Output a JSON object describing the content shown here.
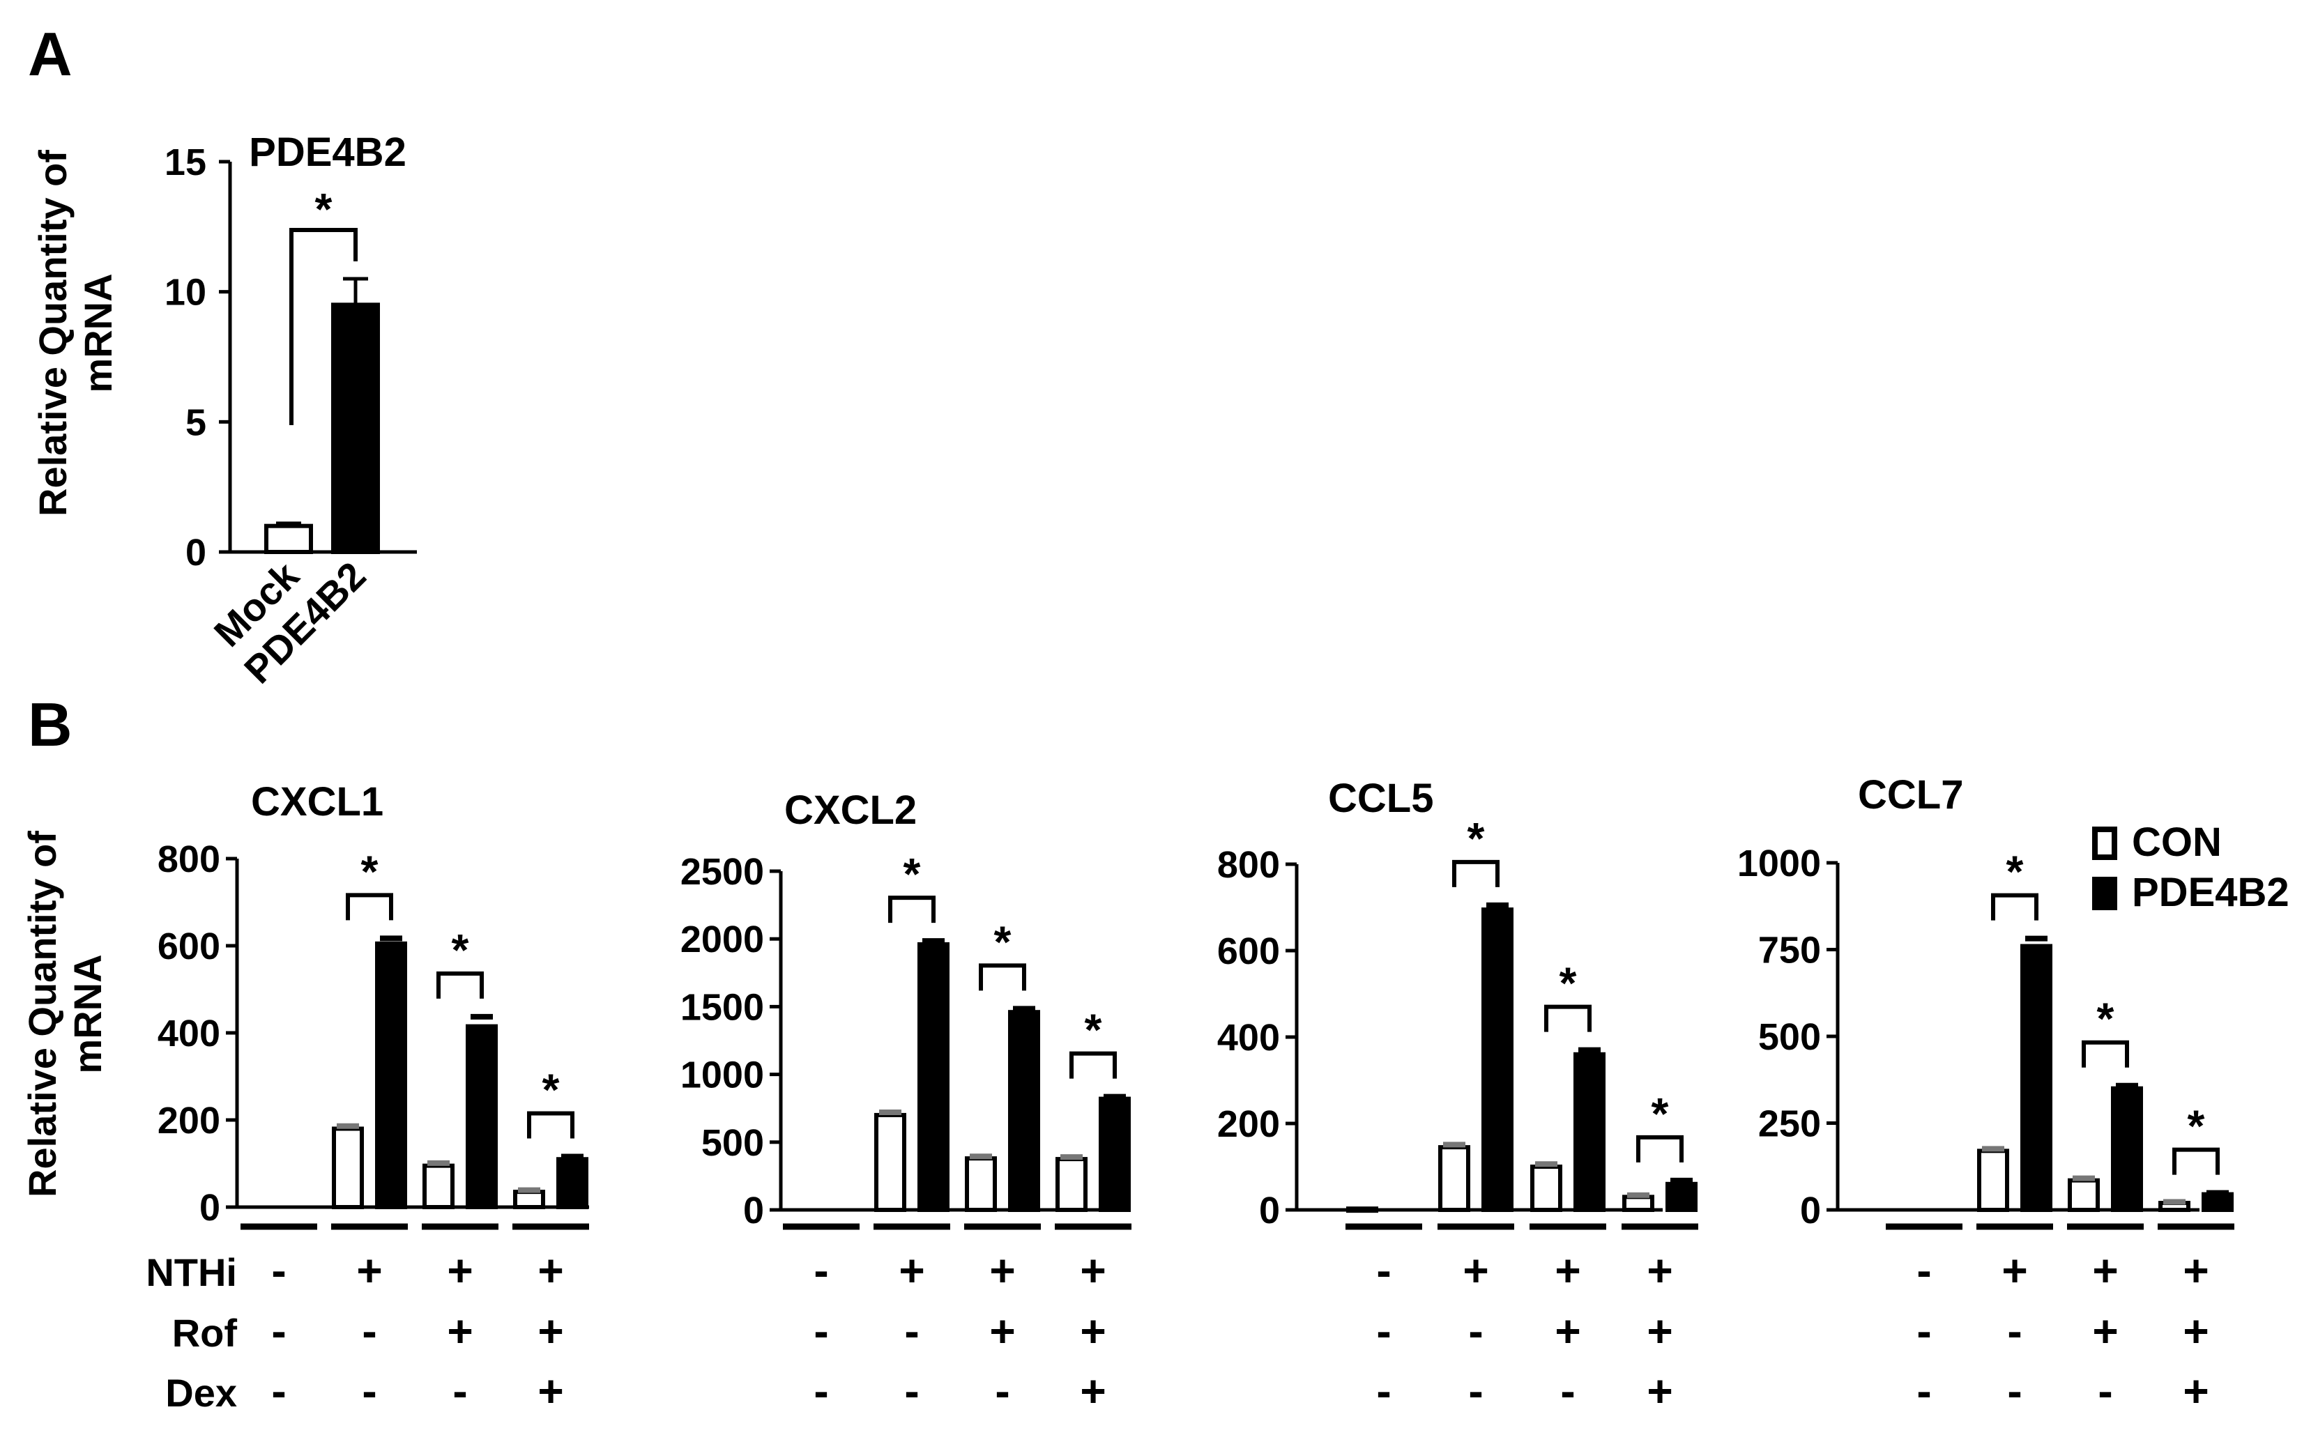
{
  "panel_labels": {
    "a": "A",
    "b": "B"
  },
  "shared": {
    "ylabel_line1": "Relative Quantity of",
    "ylabel_line2": "mRNA",
    "row_labels": [
      "NTHi",
      "Rof",
      "Dex"
    ],
    "treatments": [
      [
        "-",
        "+",
        "+",
        "+"
      ],
      [
        "-",
        "-",
        "+",
        "+"
      ],
      [
        "-",
        "-",
        "-",
        "+"
      ]
    ],
    "legend": [
      {
        "label": "CON",
        "color": "#ffffff"
      },
      {
        "label": "PDE4B2",
        "color": "#000000"
      }
    ],
    "sig_marker": "*"
  },
  "chart_data": [
    {
      "id": "A",
      "type": "bar",
      "title": "PDE4B2",
      "categories": [
        "Mock",
        "PDE4B2"
      ],
      "values": [
        1,
        9.5
      ],
      "errors": [
        0.1,
        1.0
      ],
      "colors": [
        "#ffffff",
        "#000000"
      ],
      "ylim": [
        0,
        15
      ],
      "yticks": [
        0,
        5,
        10,
        15
      ],
      "ylabel": "Relative Quantity of mRNA",
      "significance": [
        {
          "between": [
            0,
            1
          ],
          "label": "*"
        }
      ]
    },
    {
      "id": "CXCL1",
      "type": "bar",
      "title": "CXCL1",
      "ylim": [
        0,
        800
      ],
      "yticks": [
        0,
        200,
        400,
        600,
        800
      ],
      "series": [
        {
          "name": "CON",
          "values": [
            0,
            180,
            95,
            35
          ],
          "errors": [
            0,
            6,
            6,
            4
          ]
        },
        {
          "name": "PDE4B2",
          "values": [
            0,
            605,
            415,
            110
          ],
          "errors": [
            0,
            12,
            22,
            6
          ]
        }
      ],
      "significance_groups": [
        1,
        2,
        3
      ]
    },
    {
      "id": "CXCL2",
      "type": "bar",
      "title": "CXCL2",
      "ylim": [
        0,
        2500
      ],
      "yticks": [
        0,
        500,
        1000,
        1500,
        2000,
        2500
      ],
      "series": [
        {
          "name": "CON",
          "values": [
            0,
            700,
            380,
            375
          ],
          "errors": [
            0,
            20,
            15,
            15
          ]
        },
        {
          "name": "PDE4B2",
          "values": [
            0,
            1960,
            1460,
            820
          ],
          "errors": [
            0,
            25,
            25,
            15
          ]
        }
      ],
      "significance_groups": [
        1,
        2,
        3
      ]
    },
    {
      "id": "CCL5",
      "type": "bar",
      "title": "CCL5",
      "ylim": [
        0,
        800
      ],
      "yticks": [
        0,
        200,
        400,
        600,
        800
      ],
      "series": [
        {
          "name": "CON",
          "values": [
            3,
            145,
            100,
            30
          ],
          "errors": [
            0,
            6,
            6,
            4
          ]
        },
        {
          "name": "PDE4B2",
          "values": [
            0,
            695,
            360,
            60
          ],
          "errors": [
            0,
            10,
            10,
            8
          ]
        }
      ],
      "significance_groups": [
        1,
        2,
        3
      ]
    },
    {
      "id": "CCL7",
      "type": "bar",
      "title": "CCL7",
      "ylim": [
        0,
        1000
      ],
      "yticks": [
        0,
        250,
        500,
        750,
        1000
      ],
      "series": [
        {
          "name": "CON",
          "values": [
            0,
            170,
            85,
            20
          ],
          "errors": [
            0,
            6,
            6,
            3
          ]
        },
        {
          "name": "PDE4B2",
          "values": [
            0,
            760,
            350,
            45
          ],
          "errors": [
            0,
            22,
            8,
            4
          ]
        }
      ],
      "significance_groups": [
        1,
        2,
        3
      ]
    }
  ]
}
